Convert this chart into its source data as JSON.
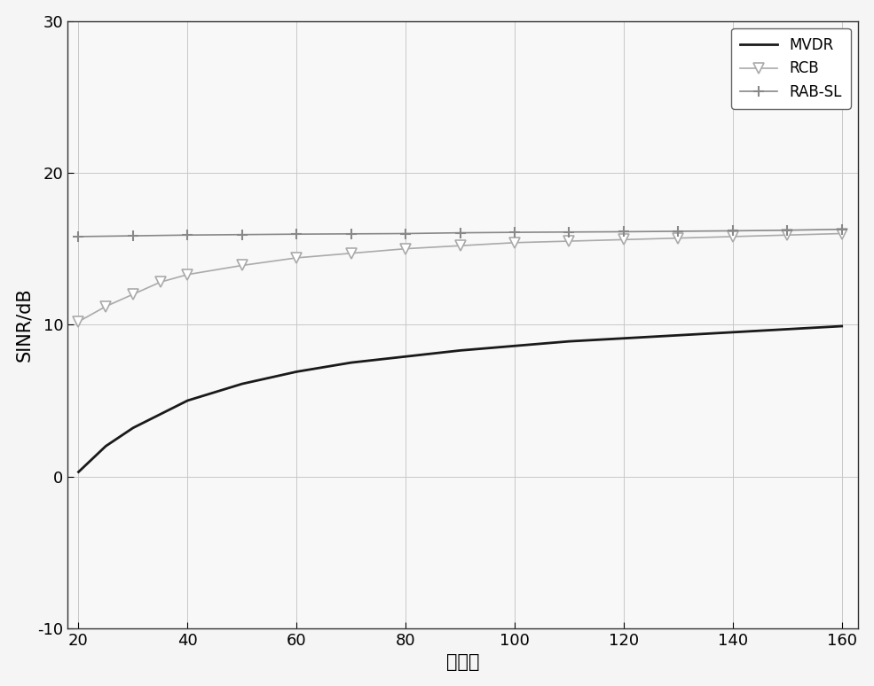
{
  "x_ticks": [
    20,
    40,
    60,
    80,
    100,
    120,
    140,
    160
  ],
  "xlim": [
    18,
    163
  ],
  "ylim": [
    -10,
    30
  ],
  "y_ticks": [
    -10,
    0,
    10,
    20,
    30
  ],
  "xlabel": "快拍数",
  "ylabel": "SINR/dB",
  "background_color": "#f5f5f5",
  "plot_bg_color": "#f8f8f8",
  "grid_color": "#c8c8c8",
  "mvdr_color": "#1a1a1a",
  "rcb_color": "#aaaaaa",
  "rabsl_color": "#888888",
  "legend_entries": [
    "MVDR",
    "RCB",
    "RAB-SL"
  ],
  "mvdr_x": [
    20,
    25,
    30,
    35,
    40,
    50,
    60,
    70,
    80,
    90,
    100,
    110,
    120,
    130,
    140,
    150,
    160
  ],
  "mvdr_y": [
    0.3,
    2.0,
    3.2,
    4.1,
    5.0,
    6.1,
    6.9,
    7.5,
    7.9,
    8.3,
    8.6,
    8.9,
    9.1,
    9.3,
    9.5,
    9.7,
    9.9
  ],
  "rcb_x": [
    20,
    25,
    30,
    35,
    40,
    50,
    60,
    70,
    80,
    90,
    100,
    110,
    120,
    130,
    140,
    150,
    160
  ],
  "rcb_y": [
    10.2,
    11.2,
    12.0,
    12.8,
    13.3,
    13.9,
    14.4,
    14.7,
    15.0,
    15.2,
    15.4,
    15.5,
    15.6,
    15.7,
    15.8,
    15.9,
    16.0
  ],
  "rabsl_x": [
    20,
    30,
    40,
    50,
    60,
    70,
    80,
    90,
    100,
    110,
    120,
    130,
    140,
    150,
    160
  ],
  "rabsl_y": [
    15.8,
    15.85,
    15.9,
    15.93,
    15.96,
    15.98,
    16.0,
    16.05,
    16.08,
    16.1,
    16.12,
    16.15,
    16.18,
    16.22,
    16.28
  ],
  "fontsize_label": 15,
  "fontsize_tick": 13,
  "fontsize_legend": 12,
  "linewidth_mvdr": 2.0,
  "linewidth_rcb": 1.2,
  "linewidth_rabsl": 1.2,
  "marker_size_rcb": 8,
  "marker_size_rabsl": 9
}
